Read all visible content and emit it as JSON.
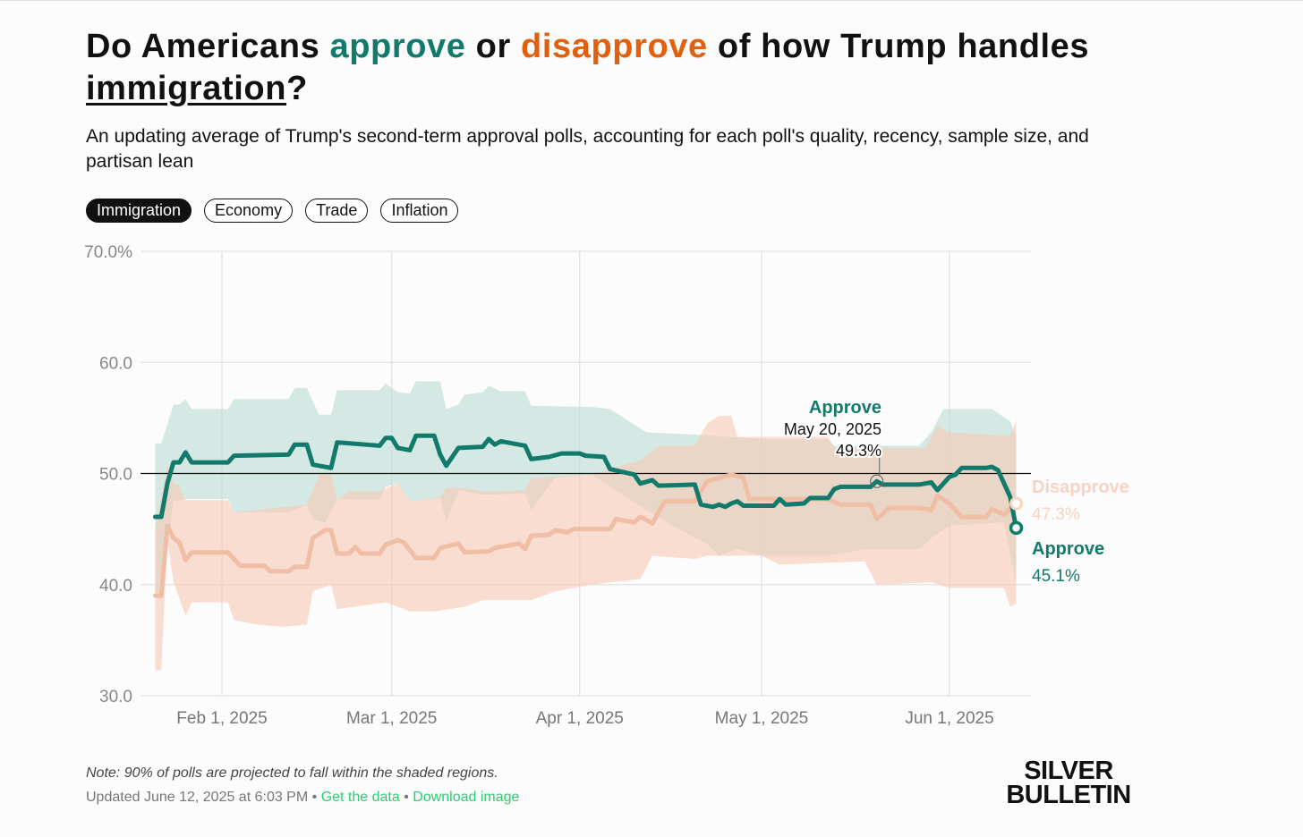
{
  "title": {
    "part1": "Do Americans ",
    "approve": "approve",
    "part2": " or ",
    "disapprove": "disapprove",
    "part3": " of how Trump handles ",
    "topic": "immigration",
    "part4": "?"
  },
  "subtitle": "An updating average of Trump's second-term approval polls, accounting for each poll's quality, recency, sample size, and partisan lean",
  "tabs": [
    {
      "label": "Immigration",
      "active": true
    },
    {
      "label": "Economy",
      "active": false
    },
    {
      "label": "Trade",
      "active": false
    },
    {
      "label": "Inflation",
      "active": false
    }
  ],
  "footer": {
    "note": "Note: 90% of polls are projected to fall within the shaded regions.",
    "updated": "Updated June 12, 2025 at 6:03 PM",
    "sep": " • ",
    "get_data": "Get the data",
    "download": "Download image"
  },
  "logo": {
    "line1": "SILVER",
    "line2": "BULLETIN"
  },
  "colors": {
    "approve": "#127a6a",
    "disapprove": "#e0600e",
    "approve_band": "#bfded6",
    "disapprove_band": "#f6cdb9",
    "disapprove_line": "#f0bda5"
  },
  "chart_data": {
    "type": "line",
    "x_unit": "day of year 2025",
    "ylim": [
      30,
      70
    ],
    "xlim": [
      21,
      163
    ],
    "y_ticks": [
      {
        "v": 70,
        "label": "70.0%"
      },
      {
        "v": 60,
        "label": "60.0"
      },
      {
        "v": 50,
        "label": "50.0"
      },
      {
        "v": 40,
        "label": "40.0"
      },
      {
        "v": 30,
        "label": "30.0"
      }
    ],
    "x_ticks": [
      {
        "v": 32,
        "label": "Feb 1, 2025"
      },
      {
        "v": 60,
        "label": "Mar 1, 2025"
      },
      {
        "v": 91,
        "label": "Apr 1, 2025"
      },
      {
        "v": 121,
        "label": "May 1, 2025"
      },
      {
        "v": 152,
        "label": "Jun 1, 2025"
      }
    ],
    "reference_line": 50,
    "series": [
      {
        "name": "Approve",
        "final_label": "45.1%",
        "values": [
          [
            21,
            46.1
          ],
          [
            22,
            46.1
          ],
          [
            23,
            49.1
          ],
          [
            24,
            51
          ],
          [
            25,
            51
          ],
          [
            26,
            51.9
          ],
          [
            27,
            51
          ],
          [
            33,
            51
          ],
          [
            34,
            51.6
          ],
          [
            43,
            51.7
          ],
          [
            44,
            52.6
          ],
          [
            46,
            52.6
          ],
          [
            47,
            50.8
          ],
          [
            50,
            50.5
          ],
          [
            51,
            52.8
          ],
          [
            58,
            52.5
          ],
          [
            59,
            53.2
          ],
          [
            60,
            53.2
          ],
          [
            61,
            52.3
          ],
          [
            63,
            52.1
          ],
          [
            64,
            53.4
          ],
          [
            67,
            53.4
          ],
          [
            68,
            51.7
          ],
          [
            69,
            50.7
          ],
          [
            71,
            52.3
          ],
          [
            75,
            52.4
          ],
          [
            76,
            53.1
          ],
          [
            77,
            52.6
          ],
          [
            78,
            52.9
          ],
          [
            80,
            52.7
          ],
          [
            82,
            52.5
          ],
          [
            83,
            51.3
          ],
          [
            86,
            51.5
          ],
          [
            88,
            51.8
          ],
          [
            91,
            51.8
          ],
          [
            92,
            51.6
          ],
          [
            95,
            51.5
          ],
          [
            96,
            50.4
          ],
          [
            100,
            49.9
          ],
          [
            101,
            49.1
          ],
          [
            103,
            49.4
          ],
          [
            104,
            48.9
          ],
          [
            110,
            49
          ],
          [
            111,
            47.2
          ],
          [
            113,
            47
          ],
          [
            114,
            47.2
          ],
          [
            115,
            47
          ],
          [
            116,
            47.3
          ],
          [
            117,
            47.5
          ],
          [
            118,
            47.1
          ],
          [
            123,
            47.1
          ],
          [
            124,
            47.7
          ],
          [
            125,
            47.2
          ],
          [
            128,
            47.3
          ],
          [
            129,
            47.8
          ],
          [
            132,
            47.8
          ],
          [
            133,
            48.6
          ],
          [
            134,
            48.8
          ],
          [
            139,
            48.8
          ],
          [
            140,
            49.3
          ],
          [
            141,
            49
          ],
          [
            147,
            49
          ],
          [
            149,
            49.2
          ],
          [
            150,
            48.5
          ],
          [
            152,
            49.7
          ],
          [
            153,
            49.9
          ],
          [
            154,
            50.5
          ],
          [
            158,
            50.5
          ],
          [
            159,
            50.6
          ],
          [
            160,
            50.3
          ],
          [
            162,
            47.9
          ],
          [
            163,
            45.1
          ]
        ],
        "upper": [
          [
            21,
            52.7
          ],
          [
            22,
            52.7
          ],
          [
            24,
            56.2
          ],
          [
            25,
            56.2
          ],
          [
            26,
            56.7
          ],
          [
            27,
            55.8
          ],
          [
            33,
            55.8
          ],
          [
            34,
            56.7
          ],
          [
            43,
            56.7
          ],
          [
            44,
            57.7
          ],
          [
            46,
            57.7
          ],
          [
            48,
            55.3
          ],
          [
            50,
            55.3
          ],
          [
            51,
            57.5
          ],
          [
            58,
            57.5
          ],
          [
            59,
            58.1
          ],
          [
            61,
            57.3
          ],
          [
            63,
            57.2
          ],
          [
            64,
            58.3
          ],
          [
            68,
            58.3
          ],
          [
            69,
            55.8
          ],
          [
            71,
            56.2
          ],
          [
            72,
            57.1
          ],
          [
            75,
            57.3
          ],
          [
            76,
            57.9
          ],
          [
            78,
            57.4
          ],
          [
            82,
            57.4
          ],
          [
            83,
            56.1
          ],
          [
            93,
            56
          ],
          [
            96,
            55.8
          ],
          [
            102,
            53.7
          ],
          [
            110,
            53.5
          ],
          [
            121,
            53.1
          ],
          [
            132,
            53.1
          ],
          [
            133,
            52.5
          ],
          [
            147,
            52.5
          ],
          [
            149,
            53.7
          ],
          [
            151,
            55.8
          ],
          [
            159,
            55.8
          ],
          [
            162,
            54.7
          ],
          [
            163,
            53.4
          ]
        ],
        "lower": [
          [
            21,
            39.2
          ],
          [
            22,
            39.2
          ],
          [
            24,
            47.5
          ],
          [
            26,
            47.7
          ],
          [
            33,
            47.7
          ],
          [
            34,
            46.5
          ],
          [
            43,
            46.5
          ],
          [
            46,
            47.2
          ],
          [
            47,
            45.9
          ],
          [
            49,
            45.6
          ],
          [
            51,
            47.7
          ],
          [
            58,
            47.7
          ],
          [
            59,
            48.8
          ],
          [
            61,
            49.1
          ],
          [
            63,
            47.5
          ],
          [
            68,
            47.8
          ],
          [
            69,
            45.6
          ],
          [
            71,
            48.5
          ],
          [
            75,
            48.1
          ],
          [
            82,
            48.2
          ],
          [
            83,
            46.7
          ],
          [
            87,
            49.6
          ],
          [
            93,
            49.9
          ],
          [
            102,
            46.7
          ],
          [
            110,
            44.2
          ],
          [
            112,
            43.7
          ],
          [
            114,
            42.6
          ],
          [
            117,
            43.2
          ],
          [
            121,
            42.6
          ],
          [
            132,
            42.6
          ],
          [
            138,
            43.2
          ],
          [
            147,
            43.2
          ],
          [
            149,
            44.2
          ],
          [
            152,
            45.3
          ],
          [
            161,
            45.6
          ],
          [
            163,
            40
          ]
        ]
      },
      {
        "name": "Disapprove",
        "final_label": "47.3%",
        "values": [
          [
            21,
            39
          ],
          [
            22,
            39
          ],
          [
            23,
            45.3
          ],
          [
            24,
            44.2
          ],
          [
            25,
            43.8
          ],
          [
            26,
            42.2
          ],
          [
            27,
            42.9
          ],
          [
            33,
            42.9
          ],
          [
            35,
            41.7
          ],
          [
            39,
            41.7
          ],
          [
            40,
            41.2
          ],
          [
            43,
            41.2
          ],
          [
            44,
            41.6
          ],
          [
            46,
            41.6
          ],
          [
            47,
            44.2
          ],
          [
            49,
            44.9
          ],
          [
            50,
            44.9
          ],
          [
            51,
            42.8
          ],
          [
            53,
            42.8
          ],
          [
            54,
            43.4
          ],
          [
            55,
            42.8
          ],
          [
            58,
            42.8
          ],
          [
            59,
            43.6
          ],
          [
            61,
            44
          ],
          [
            62,
            43.8
          ],
          [
            64,
            42.4
          ],
          [
            67,
            42.4
          ],
          [
            68,
            43.3
          ],
          [
            71,
            43.7
          ],
          [
            72,
            42.9
          ],
          [
            76,
            43
          ],
          [
            77,
            43.3
          ],
          [
            78,
            43.4
          ],
          [
            81,
            43.7
          ],
          [
            82,
            43.2
          ],
          [
            83,
            44.4
          ],
          [
            86,
            44.5
          ],
          [
            87,
            44.9
          ],
          [
            89,
            44.7
          ],
          [
            90,
            45
          ],
          [
            96,
            45
          ],
          [
            97,
            45.9
          ],
          [
            100,
            45.6
          ],
          [
            101,
            46.1
          ],
          [
            103,
            45.5
          ],
          [
            105,
            47.5
          ],
          [
            110,
            47.5
          ],
          [
            112,
            49.3
          ],
          [
            116,
            49.9
          ],
          [
            118,
            49.6
          ],
          [
            119,
            47.7
          ],
          [
            132,
            47.7
          ],
          [
            134,
            47.2
          ],
          [
            139,
            47.2
          ],
          [
            140,
            45.9
          ],
          [
            142,
            46.9
          ],
          [
            147,
            46.9
          ],
          [
            149,
            46.7
          ],
          [
            150,
            48
          ],
          [
            152,
            47.3
          ],
          [
            154,
            46.1
          ],
          [
            158,
            46.1
          ],
          [
            159,
            46.8
          ],
          [
            161,
            46.3
          ],
          [
            163,
            47.3
          ]
        ],
        "upper": [
          [
            21,
            45
          ],
          [
            23,
            50.8
          ],
          [
            24,
            49.1
          ],
          [
            25,
            48.9
          ],
          [
            26,
            47.6
          ],
          [
            33,
            47.6
          ],
          [
            34,
            46.5
          ],
          [
            46,
            47.2
          ],
          [
            48,
            49.9
          ],
          [
            50,
            49.9
          ],
          [
            51,
            47.7
          ],
          [
            53,
            48.4
          ],
          [
            58,
            48.4
          ],
          [
            61,
            49.1
          ],
          [
            63,
            47.5
          ],
          [
            68,
            47.9
          ],
          [
            69,
            48.7
          ],
          [
            72,
            48.7
          ],
          [
            75,
            48.4
          ],
          [
            78,
            48.4
          ],
          [
            82,
            48.5
          ],
          [
            83,
            49.6
          ],
          [
            93,
            49.9
          ],
          [
            101,
            51.2
          ],
          [
            104,
            52.5
          ],
          [
            110,
            52.5
          ],
          [
            112,
            54.5
          ],
          [
            114,
            55.2
          ],
          [
            116,
            55.2
          ],
          [
            117,
            53.3
          ],
          [
            132,
            53.3
          ],
          [
            133,
            52.3
          ],
          [
            148,
            52.3
          ],
          [
            150,
            54.3
          ],
          [
            152,
            53.7
          ],
          [
            162,
            53.4
          ],
          [
            163,
            54.7
          ]
        ],
        "lower": [
          [
            21,
            32.3
          ],
          [
            22,
            32.3
          ],
          [
            23,
            44.2
          ],
          [
            24,
            40.2
          ],
          [
            26,
            37.2
          ],
          [
            27,
            38.4
          ],
          [
            33,
            38.4
          ],
          [
            34,
            36.8
          ],
          [
            38,
            36.4
          ],
          [
            42,
            36.2
          ],
          [
            46,
            36.4
          ],
          [
            47,
            39.4
          ],
          [
            50,
            40
          ],
          [
            51,
            37.8
          ],
          [
            59,
            38.4
          ],
          [
            63,
            37.6
          ],
          [
            67,
            37.6
          ],
          [
            72,
            38
          ],
          [
            75,
            38.6
          ],
          [
            83,
            38.6
          ],
          [
            87,
            39.4
          ],
          [
            93,
            40
          ],
          [
            96,
            40.2
          ],
          [
            101,
            40.5
          ],
          [
            103,
            42.6
          ],
          [
            110,
            42.3
          ],
          [
            112,
            42.6
          ],
          [
            121,
            42.6
          ],
          [
            124,
            41.8
          ],
          [
            138,
            42.1
          ],
          [
            140,
            40
          ],
          [
            149,
            40.2
          ],
          [
            152,
            39.7
          ],
          [
            161,
            39.7
          ],
          [
            162,
            38
          ],
          [
            163,
            38.3
          ]
        ]
      }
    ],
    "tooltip": {
      "series": "Approve",
      "x": 140,
      "date": "May 20, 2025",
      "value": 49.3,
      "label": "49.3%"
    }
  }
}
